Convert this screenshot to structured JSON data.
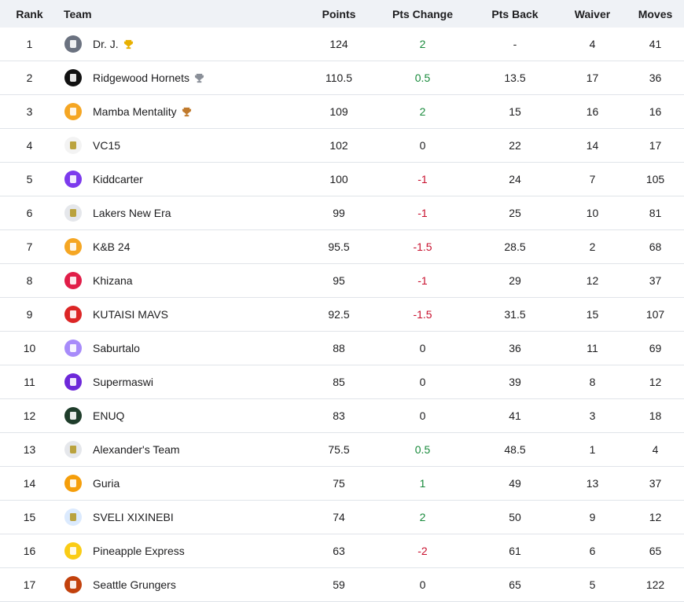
{
  "headers": {
    "rank": "Rank",
    "team": "Team",
    "points": "Points",
    "pts_change": "Pts Change",
    "pts_back": "Pts Back",
    "waiver": "Waiver",
    "moves": "Moves"
  },
  "rows": [
    {
      "rank": "1",
      "team": "Dr. J.",
      "points": "124",
      "change": "2",
      "back": "-",
      "waiver": "4",
      "moves": "41",
      "avatar_color": "#6b7280",
      "avatar_icon": "grey-jersey-avatar-icon",
      "trophy": "gold"
    },
    {
      "rank": "2",
      "team": "Ridgewood Hornets",
      "points": "110.5",
      "change": "0.5",
      "back": "13.5",
      "waiver": "17",
      "moves": "36",
      "avatar_color": "#111111",
      "avatar_icon": "black-bolt-avatar-icon",
      "trophy": "silver"
    },
    {
      "rank": "3",
      "team": "Mamba Mentality",
      "points": "109",
      "change": "2",
      "back": "15",
      "waiver": "16",
      "moves": "16",
      "avatar_color": "#f5a623",
      "avatar_icon": "orange-jersey-avatar-icon",
      "trophy": "bronze"
    },
    {
      "rank": "4",
      "team": "VC15",
      "points": "102",
      "change": "0",
      "back": "22",
      "waiver": "14",
      "moves": "17",
      "avatar_color": "#f3f3f3",
      "avatar_icon": "trophy-avatar-icon",
      "trophy": ""
    },
    {
      "rank": "5",
      "team": "Kiddcarter",
      "points": "100",
      "change": "-1",
      "back": "24",
      "waiver": "7",
      "moves": "105",
      "avatar_color": "#7c3aed",
      "avatar_icon": "purple-jersey-avatar-icon",
      "trophy": ""
    },
    {
      "rank": "6",
      "team": "Lakers New Era",
      "points": "99",
      "change": "-1",
      "back": "25",
      "waiver": "10",
      "moves": "81",
      "avatar_color": "#e5e7eb",
      "avatar_icon": "yellow-jersey-avatar-icon",
      "trophy": ""
    },
    {
      "rank": "7",
      "team": "K&B 24",
      "points": "95.5",
      "change": "-1.5",
      "back": "28.5",
      "waiver": "2",
      "moves": "68",
      "avatar_color": "#f5a623",
      "avatar_icon": "orange-jersey-avatar-icon",
      "trophy": ""
    },
    {
      "rank": "8",
      "team": "Khizana",
      "points": "95",
      "change": "-1",
      "back": "29",
      "waiver": "12",
      "moves": "37",
      "avatar_color": "#e11d48",
      "avatar_icon": "red-jersey-avatar-icon",
      "trophy": ""
    },
    {
      "rank": "9",
      "team": "KUTAISI MAVS",
      "points": "92.5",
      "change": "-1.5",
      "back": "31.5",
      "waiver": "15",
      "moves": "107",
      "avatar_color": "#dc2626",
      "avatar_icon": "red-jersey-avatar-icon",
      "trophy": ""
    },
    {
      "rank": "10",
      "team": "Saburtalo",
      "points": "88",
      "change": "0",
      "back": "36",
      "waiver": "11",
      "moves": "69",
      "avatar_color": "#a78bfa",
      "avatar_icon": "lavender-jersey-avatar-icon",
      "trophy": ""
    },
    {
      "rank": "11",
      "team": "Supermaswi",
      "points": "85",
      "change": "0",
      "back": "39",
      "waiver": "8",
      "moves": "12",
      "avatar_color": "#6d28d9",
      "avatar_icon": "purple-jersey-avatar-icon",
      "trophy": ""
    },
    {
      "rank": "12",
      "team": "ENUQ",
      "points": "83",
      "change": "0",
      "back": "41",
      "waiver": "3",
      "moves": "18",
      "avatar_color": "#1f3d2b",
      "avatar_icon": "green-logo-avatar-icon",
      "trophy": ""
    },
    {
      "rank": "13",
      "team": "Alexander's Team",
      "points": "75.5",
      "change": "0.5",
      "back": "48.5",
      "waiver": "1",
      "moves": "4",
      "avatar_color": "#e5e7eb",
      "avatar_icon": "yellow-jersey-avatar-icon",
      "trophy": ""
    },
    {
      "rank": "14",
      "team": "Guria",
      "points": "75",
      "change": "1",
      "back": "49",
      "waiver": "13",
      "moves": "37",
      "avatar_color": "#f59e0b",
      "avatar_icon": "basketball-avatar-icon",
      "trophy": ""
    },
    {
      "rank": "15",
      "team": "SVELI XIXINEBI",
      "points": "74",
      "change": "2",
      "back": "50",
      "waiver": "9",
      "moves": "12",
      "avatar_color": "#dbeafe",
      "avatar_icon": "bubbles-avatar-icon",
      "trophy": ""
    },
    {
      "rank": "16",
      "team": "Pineapple Express",
      "points": "63",
      "change": "-2",
      "back": "61",
      "waiver": "6",
      "moves": "65",
      "avatar_color": "#facc15",
      "avatar_icon": "green-jersey-avatar-icon",
      "trophy": ""
    },
    {
      "rank": "17",
      "team": "Seattle Grungers",
      "points": "59",
      "change": "0",
      "back": "65",
      "waiver": "5",
      "moves": "122",
      "avatar_color": "#c2410c",
      "avatar_icon": "orange-ball-avatar-icon",
      "trophy": ""
    }
  ],
  "colors": {
    "positive": "#188a3b",
    "negative": "#c8102e",
    "header_bg": "#eff2f6",
    "trophy_gold": "#e8b000",
    "trophy_silver": "#8a8f98",
    "trophy_bronze": "#c07a2c"
  }
}
